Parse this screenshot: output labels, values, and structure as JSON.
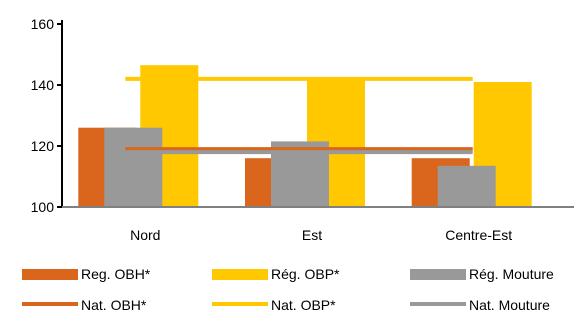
{
  "chart_data": {
    "type": "bar",
    "categories": [
      "Nord",
      "Est",
      "Centre-Est"
    ],
    "series": [
      {
        "name": "Reg. OBH*",
        "kind": "bar",
        "color": "#D9661C",
        "values": [
          126,
          116,
          116
        ]
      },
      {
        "name": "Rég. OBP*",
        "kind": "bar",
        "color": "#FFC800",
        "values": [
          146.5,
          142,
          141
        ]
      },
      {
        "name": "Rég. Mouture",
        "kind": "bar",
        "color": "#999999",
        "values": [
          126,
          121.5,
          113.5
        ]
      },
      {
        "name": "Nat. OBH*",
        "kind": "line",
        "color": "#D9661C",
        "values": [
          119,
          119,
          119
        ]
      },
      {
        "name": "Nat. OBP*",
        "kind": "line",
        "color": "#FFC800",
        "values": [
          142,
          142,
          142
        ]
      },
      {
        "name": "Nat. Mouture",
        "kind": "line",
        "color": "#999999",
        "values": [
          118,
          118,
          118
        ]
      }
    ],
    "ylim": [
      100,
      160
    ],
    "yticks": [
      100,
      120,
      140,
      160
    ],
    "title": "",
    "xlabel": "",
    "ylabel": "",
    "grid": false,
    "legend_position": "bottom"
  }
}
